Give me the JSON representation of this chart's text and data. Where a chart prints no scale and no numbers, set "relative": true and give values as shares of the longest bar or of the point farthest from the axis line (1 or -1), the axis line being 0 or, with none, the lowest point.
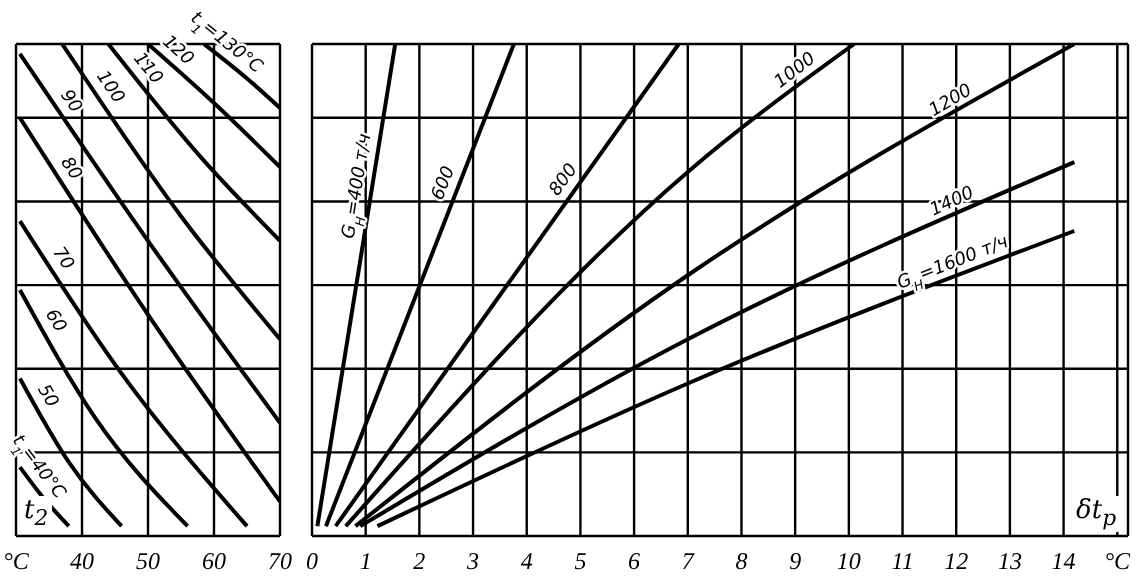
{
  "chart_data": [
    {
      "type": "line",
      "relative": true,
      "xlabel": "t$_{2}$",
      "xlim": [
        30,
        70
      ],
      "xticks": [
        {
          "value": 30,
          "label": "°C"
        },
        40,
        50,
        60,
        70
      ],
      "grid": true,
      "marker": "none",
      "series": [
        {
          "name": "t$_{1}$=130°C",
          "color": "#000000",
          "x": [
            58.5,
            65,
            70
          ],
          "values": [
            1,
            0.93,
            0.87
          ]
        },
        {
          "name": "120",
          "color": "#000000",
          "x": [
            50,
            60,
            70
          ],
          "values": [
            1,
            0.88,
            0.75
          ]
        },
        {
          "name": "110",
          "color": "#000000",
          "x": [
            44,
            58,
            70
          ],
          "values": [
            1,
            0.77,
            0.6
          ]
        },
        {
          "name": "100",
          "color": "#000000",
          "x": [
            37,
            55,
            70
          ],
          "values": [
            1,
            0.65,
            0.4
          ]
        },
        {
          "name": "90",
          "color": "#000000",
          "x": [
            30.6,
            50,
            70
          ],
          "values": [
            0.98,
            0.6,
            0.23
          ]
        },
        {
          "name": "80",
          "color": "#000000",
          "x": [
            30.6,
            50,
            70
          ],
          "values": [
            0.85,
            0.45,
            0.07
          ]
        },
        {
          "name": "70",
          "color": "#000000",
          "x": [
            30.6,
            46,
            65
          ],
          "values": [
            0.64,
            0.33,
            0.02
          ]
        },
        {
          "name": "60",
          "color": "#000000",
          "x": [
            30.6,
            42,
            56
          ],
          "values": [
            0.5,
            0.24,
            0.02
          ]
        },
        {
          "name": "50",
          "color": "#000000",
          "x": [
            30.6,
            38,
            46
          ],
          "values": [
            0.32,
            0.15,
            0.02
          ]
        },
        {
          "name": "t$_{1}$=40°C",
          "color": "#000000",
          "x": [
            30.6,
            34,
            38
          ],
          "values": [
            0.14,
            0.08,
            0.02
          ]
        }
      ]
    },
    {
      "type": "line",
      "relative": true,
      "xlabel": "δt$_{р}$",
      "xlim": [
        0,
        15.2
      ],
      "xticks": [
        0,
        1,
        2,
        3,
        4,
        5,
        6,
        7,
        8,
        9,
        10,
        11,
        12,
        13,
        14,
        {
          "value": 15,
          "label": "°C"
        }
      ],
      "grid": true,
      "marker": "none",
      "series": [
        {
          "name": "G$_{Н}$=400 т/ч",
          "color": "#000000",
          "x": [
            0.1,
            1.55
          ],
          "values": [
            0.02,
            1
          ]
        },
        {
          "name": "600",
          "color": "#000000",
          "x": [
            0.26,
            3.76
          ],
          "values": [
            0.02,
            1
          ]
        },
        {
          "name": "800",
          "color": "#000000",
          "x": [
            0.44,
            6.83
          ],
          "values": [
            0.02,
            1
          ]
        },
        {
          "name": "1000",
          "color": "#000000",
          "x": [
            0.63,
            7,
            10.1
          ],
          "values": [
            0.02,
            0.74,
            1
          ]
        },
        {
          "name": "1200",
          "color": "#000000",
          "x": [
            0.81,
            7,
            14.2
          ],
          "values": [
            0.02,
            0.53,
            1
          ]
        },
        {
          "name": "1400",
          "color": "#000000",
          "x": [
            0.9,
            7,
            14.2
          ],
          "values": [
            0.02,
            0.4,
            0.76
          ]
        },
        {
          "name": "G$_{Н}$=1600 т/ч",
          "color": "#000000",
          "x": [
            1.22,
            7,
            14.2
          ],
          "values": [
            0.02,
            0.31,
            0.62
          ]
        }
      ]
    }
  ]
}
